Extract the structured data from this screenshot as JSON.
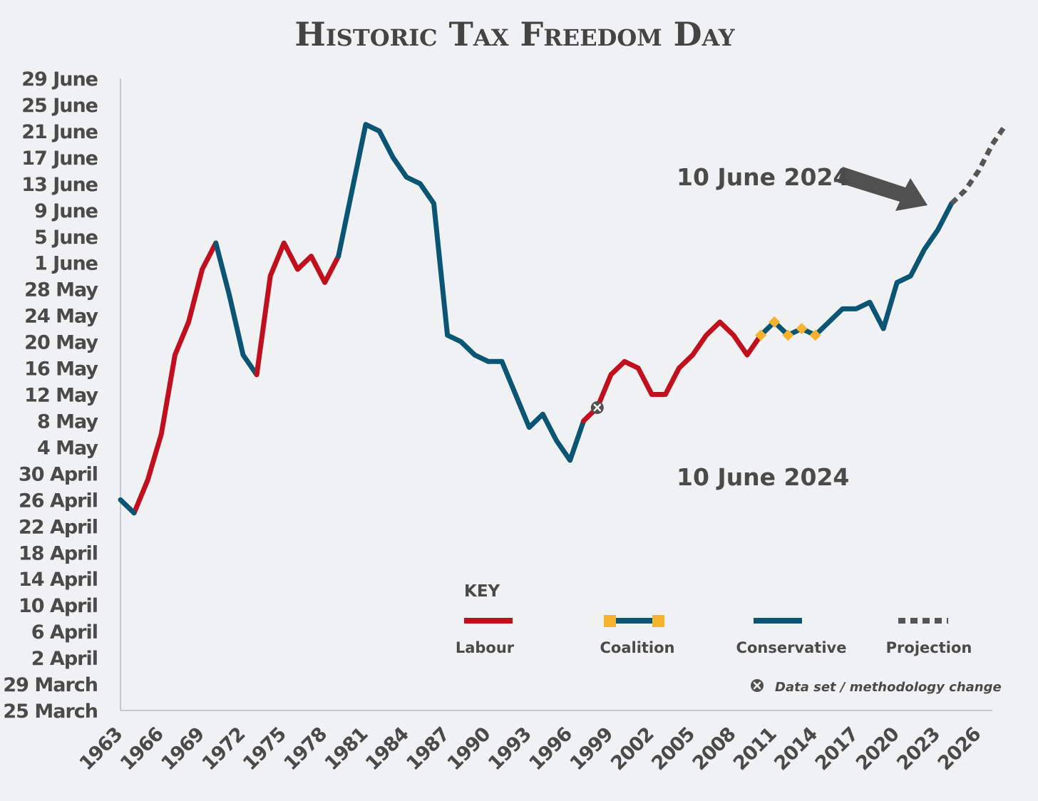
{
  "chart_data": {
    "type": "line",
    "title": "Historic Tax Freedom Day",
    "colors": {
      "labour": "#c0101e",
      "conservative": "#0b5574",
      "coalition_marker": "#f6b22c",
      "projection": "#555555",
      "axis": "#c8c8c8",
      "text": "#4a4a4a"
    },
    "x_range": [
      1963,
      2027
    ],
    "x_ticks": [
      "1963",
      "1966",
      "1969",
      "1972",
      "1975",
      "1978",
      "1981",
      "1984",
      "1987",
      "1990",
      "1993",
      "1996",
      "1999",
      "2002",
      "2005",
      "2008",
      "2011",
      "2014",
      "2017",
      "2020",
      "2023",
      "2026"
    ],
    "y_range": [
      "25 March",
      "29 June"
    ],
    "y_ticks": [
      "29 June",
      "25 June",
      "21 June",
      "17 June",
      "13 June",
      "9 June",
      "5 June",
      "1 June",
      "28 May",
      "24 May",
      "20 May",
      "16 May",
      "12 May",
      "8 May",
      "4 May",
      "30 April",
      "26 April",
      "22 April",
      "18 April",
      "14 April",
      "10 April",
      "6 April",
      "2 April",
      "29 March",
      "25 March"
    ],
    "series": [
      {
        "name": "Labour",
        "points": [
          {
            "x": 1964,
            "y": "24 April"
          },
          {
            "x": 1965,
            "y": "29 April"
          },
          {
            "x": 1966,
            "y": "6 May"
          },
          {
            "x": 1967,
            "y": "18 May"
          },
          {
            "x": 1968,
            "y": "23 May"
          },
          {
            "x": 1969,
            "y": "31 May"
          },
          {
            "x": 1970,
            "y": "4 June"
          }
        ]
      },
      {
        "name": "Conservative",
        "points": [
          {
            "x": 1963,
            "y": "26 April"
          },
          {
            "x": 1964,
            "y": "24 April"
          }
        ]
      },
      {
        "name": "Conservative",
        "points": [
          {
            "x": 1970,
            "y": "4 June"
          },
          {
            "x": 1971,
            "y": "27 May"
          },
          {
            "x": 1972,
            "y": "18 May"
          },
          {
            "x": 1973,
            "y": "15 May"
          }
        ]
      },
      {
        "name": "Labour",
        "points": [
          {
            "x": 1973,
            "y": "15 May"
          },
          {
            "x": 1974,
            "y": "30 May"
          },
          {
            "x": 1975,
            "y": "4 June"
          },
          {
            "x": 1976,
            "y": "31 May"
          },
          {
            "x": 1977,
            "y": "2 June"
          },
          {
            "x": 1978,
            "y": "29 May"
          },
          {
            "x": 1979,
            "y": "2 June"
          }
        ]
      },
      {
        "name": "Conservative",
        "points": [
          {
            "x": 1979,
            "y": "2 June"
          },
          {
            "x": 1980,
            "y": "12 June"
          },
          {
            "x": 1981,
            "y": "22 June"
          },
          {
            "x": 1982,
            "y": "21 June"
          },
          {
            "x": 1983,
            "y": "17 June"
          },
          {
            "x": 1984,
            "y": "14 June"
          },
          {
            "x": 1985,
            "y": "13 June"
          },
          {
            "x": 1986,
            "y": "10 June"
          },
          {
            "x": 1987,
            "y": "21 May"
          },
          {
            "x": 1988,
            "y": "20 May"
          },
          {
            "x": 1989,
            "y": "18 May"
          },
          {
            "x": 1990,
            "y": "17 May"
          },
          {
            "x": 1991,
            "y": "17 May"
          },
          {
            "x": 1992,
            "y": "12 May"
          },
          {
            "x": 1993,
            "y": "7 May"
          },
          {
            "x": 1994,
            "y": "9 May"
          },
          {
            "x": 1995,
            "y": "5 May"
          },
          {
            "x": 1996,
            "y": "2 May"
          },
          {
            "x": 1997,
            "y": "8 May"
          }
        ]
      },
      {
        "name": "Labour",
        "points": [
          {
            "x": 1997,
            "y": "8 May"
          },
          {
            "x": 1998,
            "y": "10 May"
          },
          {
            "x": 1999,
            "y": "15 May"
          },
          {
            "x": 2000,
            "y": "17 May"
          },
          {
            "x": 2001,
            "y": "16 May"
          },
          {
            "x": 2002,
            "y": "12 May"
          },
          {
            "x": 2003,
            "y": "12 May"
          },
          {
            "x": 2004,
            "y": "16 May"
          },
          {
            "x": 2005,
            "y": "18 May"
          },
          {
            "x": 2006,
            "y": "21 May"
          },
          {
            "x": 2007,
            "y": "23 May"
          },
          {
            "x": 2008,
            "y": "21 May"
          },
          {
            "x": 2009,
            "y": "18 May"
          },
          {
            "x": 2010,
            "y": "21 May"
          }
        ]
      },
      {
        "name": "Coalition",
        "points": [
          {
            "x": 2010,
            "y": "21 May"
          },
          {
            "x": 2011,
            "y": "23 May"
          },
          {
            "x": 2012,
            "y": "21 May"
          },
          {
            "x": 2013,
            "y": "22 May"
          },
          {
            "x": 2014,
            "y": "21 May"
          }
        ]
      },
      {
        "name": "Conservative",
        "points": [
          {
            "x": 2014,
            "y": "21 May"
          },
          {
            "x": 2015,
            "y": "23 May"
          },
          {
            "x": 2016,
            "y": "25 May"
          },
          {
            "x": 2017,
            "y": "25 May"
          },
          {
            "x": 2018,
            "y": "26 May"
          },
          {
            "x": 2019,
            "y": "22 May"
          },
          {
            "x": 2020,
            "y": "29 May"
          },
          {
            "x": 2021,
            "y": "30 May"
          },
          {
            "x": 2022,
            "y": "3 June"
          },
          {
            "x": 2023,
            "y": "6 June"
          },
          {
            "x": 2024,
            "y": "10 June"
          }
        ]
      },
      {
        "name": "Projection",
        "points": [
          {
            "x": 2024,
            "y": "10 June"
          },
          {
            "x": 2025,
            "y": "12 June"
          },
          {
            "x": 2026,
            "y": "15 June"
          },
          {
            "x": 2027,
            "y": "19 June"
          },
          {
            "x": 2028,
            "y": "22 June"
          }
        ]
      }
    ],
    "coalition_markers": [
      {
        "x": 2010,
        "y": "21 May"
      },
      {
        "x": 2011,
        "y": "23 May"
      },
      {
        "x": 2012,
        "y": "21 May"
      },
      {
        "x": 2013,
        "y": "22 May"
      },
      {
        "x": 2014,
        "y": "21 May"
      }
    ],
    "methodology_change_marker": {
      "x": 1998,
      "y": "10 May"
    },
    "annotations": [
      {
        "text": "10 June 2024",
        "arrow": true
      },
      {
        "text": "10 June 2024",
        "arrow": false
      }
    ],
    "legend": {
      "title": "KEY",
      "placement": "bottom-right",
      "items": [
        "Labour",
        "Coalition",
        "Conservative",
        "Projection"
      ],
      "note": "Data set / methodology change"
    },
    "grid": false
  }
}
